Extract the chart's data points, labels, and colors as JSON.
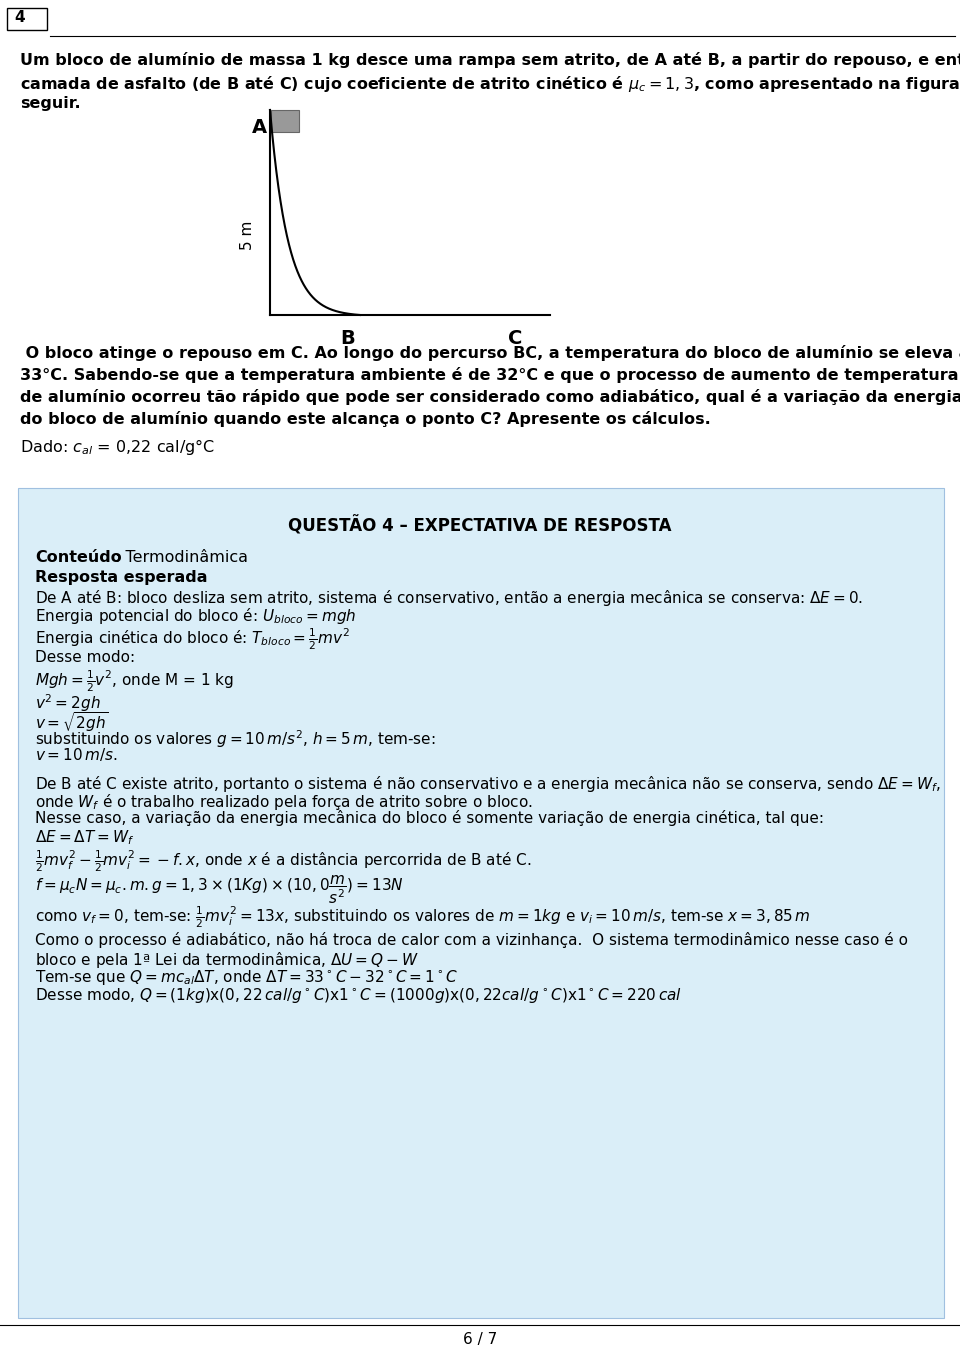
{
  "page_num": "4",
  "footer": "6 / 7",
  "bg_color": "#ffffff",
  "box_bg_color": "#daeef8",
  "text_color": "#000000",
  "box_title": "QUESTÃO 4 – EXPECTATIVA DE RESPOSTA"
}
